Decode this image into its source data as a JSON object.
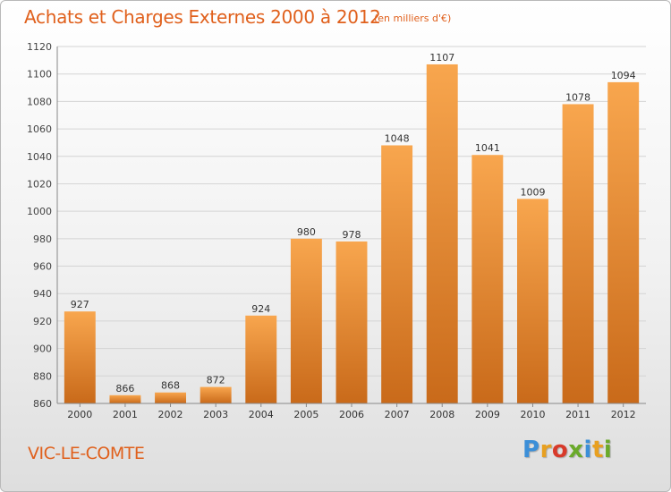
{
  "header": {
    "title": "Achats et Charges Externes 2000 à 2012",
    "subtitle": "(en milliers d'€)"
  },
  "footer": {
    "commune": "VIC-LE-COMTE",
    "logo_text": "Proxiti",
    "logo_colors": [
      "#3c8fd8",
      "#e8a020",
      "#d83a2a",
      "#6aaa2a",
      "#3c8fd8",
      "#e8a020",
      "#6aaa2a"
    ]
  },
  "colors": {
    "bar_top": "#f8a64e",
    "bar_bottom": "#c96a1a",
    "grid": "#d4d4d4",
    "text_accent": "#e0601c"
  },
  "chart_data": {
    "type": "bar",
    "categories": [
      "2000",
      "2001",
      "2002",
      "2003",
      "2004",
      "2005",
      "2006",
      "2007",
      "2008",
      "2009",
      "2010",
      "2011",
      "2012"
    ],
    "values": [
      927,
      866,
      868,
      872,
      924,
      980,
      978,
      1048,
      1107,
      1041,
      1009,
      1078,
      1094
    ],
    "title": "Achats et Charges Externes 2000 à 2012",
    "xlabel": "",
    "ylabel": "",
    "ylim": [
      860,
      1120
    ],
    "yticks": [
      860,
      880,
      900,
      920,
      940,
      960,
      980,
      1000,
      1020,
      1040,
      1060,
      1080,
      1100,
      1120
    ],
    "grid": true,
    "legend": "none"
  }
}
